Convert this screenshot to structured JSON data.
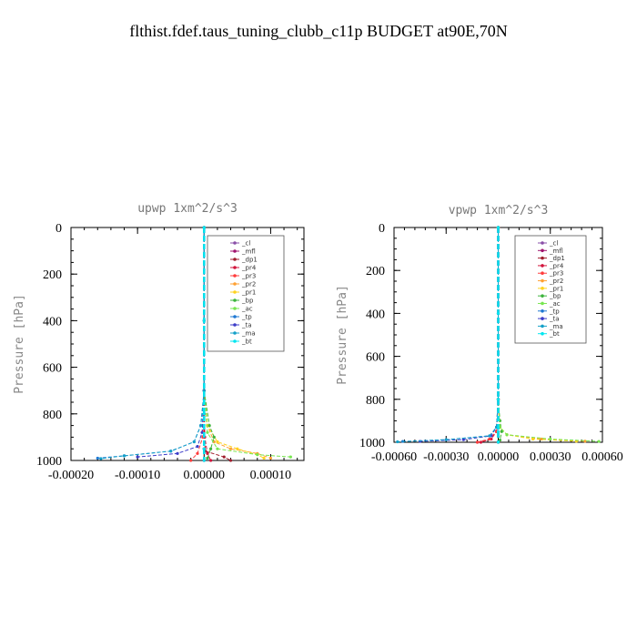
{
  "figure_title": "flthist.fdef.taus_tuning_clubb_c11p  BUDGET at90E,70N",
  "legend_entries": [
    {
      "name": "_cl",
      "color": "#8a4fa8"
    },
    {
      "name": "_mfl",
      "color": "#a0146e"
    },
    {
      "name": "_dp1",
      "color": "#a01e2d"
    },
    {
      "name": "_pr4",
      "color": "#d2143c"
    },
    {
      "name": "_pr3",
      "color": "#ff3c3c"
    },
    {
      "name": "_pr2",
      "color": "#ffa032"
    },
    {
      "name": "_pr1",
      "color": "#ffd21e"
    },
    {
      "name": "_bp",
      "color": "#3cb43c"
    },
    {
      "name": "_ac",
      "color": "#78e650"
    },
    {
      "name": "_tp",
      "color": "#1e78d2"
    },
    {
      "name": "_ta",
      "color": "#3c3cc8"
    },
    {
      "name": "_ma",
      "color": "#14a0c8"
    },
    {
      "name": "_bt",
      "color": "#00e6f0"
    }
  ],
  "chart_data": [
    {
      "type": "line",
      "title": "upwp   1xm^2/s^3",
      "ylabel": "Pressure [hPa]",
      "xlim": [
        -0.0002,
        0.00015
      ],
      "ylim": [
        1000,
        0
      ],
      "xticks": [
        -0.0002,
        -0.0001,
        0.0,
        0.0001
      ],
      "xtick_labels": [
        "-0.00020",
        "-0.00010",
        "0.00000",
        "0.00010"
      ],
      "yticks": [
        0,
        200,
        400,
        600,
        800,
        1000
      ],
      "ytick_labels": [
        "0",
        "200",
        "400",
        "600",
        "800",
        "1000"
      ],
      "legend_position": "top-right",
      "series": [
        {
          "name": "_cl",
          "x": [
            0,
            0,
            0,
            0,
            0
          ],
          "y": [
            0,
            400,
            800,
            950,
            1000
          ]
        },
        {
          "name": "_mfl",
          "x": [
            0,
            0,
            0,
            0,
            0
          ],
          "y": [
            0,
            400,
            800,
            950,
            1000
          ]
        },
        {
          "name": "_dp1",
          "x": [
            0,
            0,
            0,
            2e-06,
            3e-05,
            4e-05
          ],
          "y": [
            0,
            700,
            900,
            960,
            985,
            1000
          ]
        },
        {
          "name": "_pr4",
          "x": [
            0,
            0,
            1e-06,
            5e-06,
            1e-05
          ],
          "y": [
            0,
            700,
            900,
            970,
            1000
          ]
        },
        {
          "name": "_pr3",
          "x": [
            0,
            0,
            -2e-06,
            -1e-05,
            -2e-05
          ],
          "y": [
            0,
            700,
            900,
            970,
            1000
          ]
        },
        {
          "name": "_pr2",
          "x": [
            0,
            0,
            5e-06,
            1.5e-05,
            4e-05,
            8e-05,
            0.0001
          ],
          "y": [
            0,
            700,
            850,
            920,
            950,
            970,
            990
          ]
        },
        {
          "name": "_pr1",
          "x": [
            0,
            0,
            5e-06,
            2e-05,
            5e-05,
            8e-05,
            9e-05
          ],
          "y": [
            0,
            700,
            850,
            920,
            950,
            975,
            990
          ]
        },
        {
          "name": "_bp",
          "x": [
            0,
            0,
            8e-06,
            1.5e-05,
            1e-05,
            5e-06
          ],
          "y": [
            0,
            700,
            850,
            900,
            950,
            990
          ]
        },
        {
          "name": "_ac",
          "x": [
            0,
            0,
            5e-06,
            2e-05,
            8e-05,
            0.00013
          ],
          "y": [
            0,
            700,
            880,
            950,
            975,
            985
          ]
        },
        {
          "name": "_tp",
          "x": [
            0,
            0,
            -5e-06,
            -1.5e-05,
            -5e-05,
            -0.00012,
            -0.00016
          ],
          "y": [
            0,
            700,
            850,
            920,
            960,
            980,
            990
          ]
        },
        {
          "name": "_ta",
          "x": [
            0,
            0,
            -3e-06,
            -1e-05,
            -4e-05,
            -0.0001
          ],
          "y": [
            0,
            700,
            880,
            940,
            970,
            985
          ]
        },
        {
          "name": "_ma",
          "x": [
            0,
            0,
            -5e-06,
            -1.5e-05,
            -5e-05,
            -0.00012,
            -0.000155
          ],
          "y": [
            0,
            700,
            850,
            920,
            960,
            980,
            992
          ]
        },
        {
          "name": "_bt",
          "x": [
            0,
            0,
            0,
            0,
            0
          ],
          "y": [
            0,
            400,
            800,
            950,
            1000
          ]
        }
      ]
    },
    {
      "type": "line",
      "title": "vpwp   1xm^2/s^3",
      "ylabel": "Pressure [hPa]",
      "xlim": [
        -0.0006,
        0.0006
      ],
      "ylim": [
        1000,
        0
      ],
      "xticks": [
        -0.0006,
        -0.0003,
        0.0,
        0.0003,
        0.0006
      ],
      "xtick_labels": [
        "-0.00060",
        "-0.00030",
        "0.00000",
        "0.00030",
        "0.00060"
      ],
      "yticks": [
        0,
        200,
        400,
        600,
        800,
        1000
      ],
      "ytick_labels": [
        "0",
        "200",
        "400",
        "600",
        "800",
        "1000"
      ],
      "legend_position": "top-right",
      "series": [
        {
          "name": "_cl",
          "x": [
            0,
            0,
            0,
            0,
            0
          ],
          "y": [
            0,
            400,
            800,
            950,
            1000
          ]
        },
        {
          "name": "_mfl",
          "x": [
            0,
            0,
            0,
            0,
            0
          ],
          "y": [
            0,
            400,
            800,
            950,
            1000
          ]
        },
        {
          "name": "_dp1",
          "x": [
            0,
            0,
            -1e-05,
            -5e-05,
            -0.00012
          ],
          "y": [
            0,
            800,
            950,
            985,
            1000
          ]
        },
        {
          "name": "_pr4",
          "x": [
            0,
            0,
            -1e-05,
            -4e-05,
            -0.0001
          ],
          "y": [
            0,
            800,
            950,
            985,
            1000
          ]
        },
        {
          "name": "_pr3",
          "x": [
            0,
            0,
            -1e-05,
            -5e-05,
            -0.00012
          ],
          "y": [
            0,
            800,
            950,
            985,
            1000
          ]
        },
        {
          "name": "_pr2",
          "x": [
            0,
            0,
            1e-05,
            5e-05,
            0.00025,
            0.0005
          ],
          "y": [
            0,
            800,
            930,
            965,
            985,
            995
          ]
        },
        {
          "name": "_pr1",
          "x": [
            0,
            0,
            1e-05,
            5e-05,
            0.0002,
            0.00045
          ],
          "y": [
            0,
            800,
            930,
            965,
            985,
            995
          ]
        },
        {
          "name": "_bp",
          "x": [
            0,
            0,
            1e-05,
            2e-05,
            1e-05
          ],
          "y": [
            0,
            800,
            900,
            950,
            990
          ]
        },
        {
          "name": "_ac",
          "x": [
            0,
            0,
            1e-05,
            5e-05,
            0.0003,
            0.00058
          ],
          "y": [
            0,
            800,
            930,
            965,
            985,
            996
          ]
        },
        {
          "name": "_tp",
          "x": [
            0,
            0,
            -1e-05,
            -5e-05,
            -0.0003,
            -0.00055
          ],
          "y": [
            0,
            800,
            930,
            970,
            988,
            996
          ]
        },
        {
          "name": "_ta",
          "x": [
            0,
            0,
            -1e-05,
            -4e-05,
            -0.0002,
            -0.00045
          ],
          "y": [
            0,
            800,
            930,
            970,
            988,
            996
          ]
        },
        {
          "name": "_ma",
          "x": [
            0,
            0,
            -1e-05,
            -5e-05,
            -0.0003,
            -0.00058
          ],
          "y": [
            0,
            800,
            930,
            970,
            988,
            998
          ]
        },
        {
          "name": "_bt",
          "x": [
            0,
            0,
            0,
            0,
            0
          ],
          "y": [
            0,
            400,
            800,
            950,
            1000
          ]
        }
      ]
    }
  ]
}
